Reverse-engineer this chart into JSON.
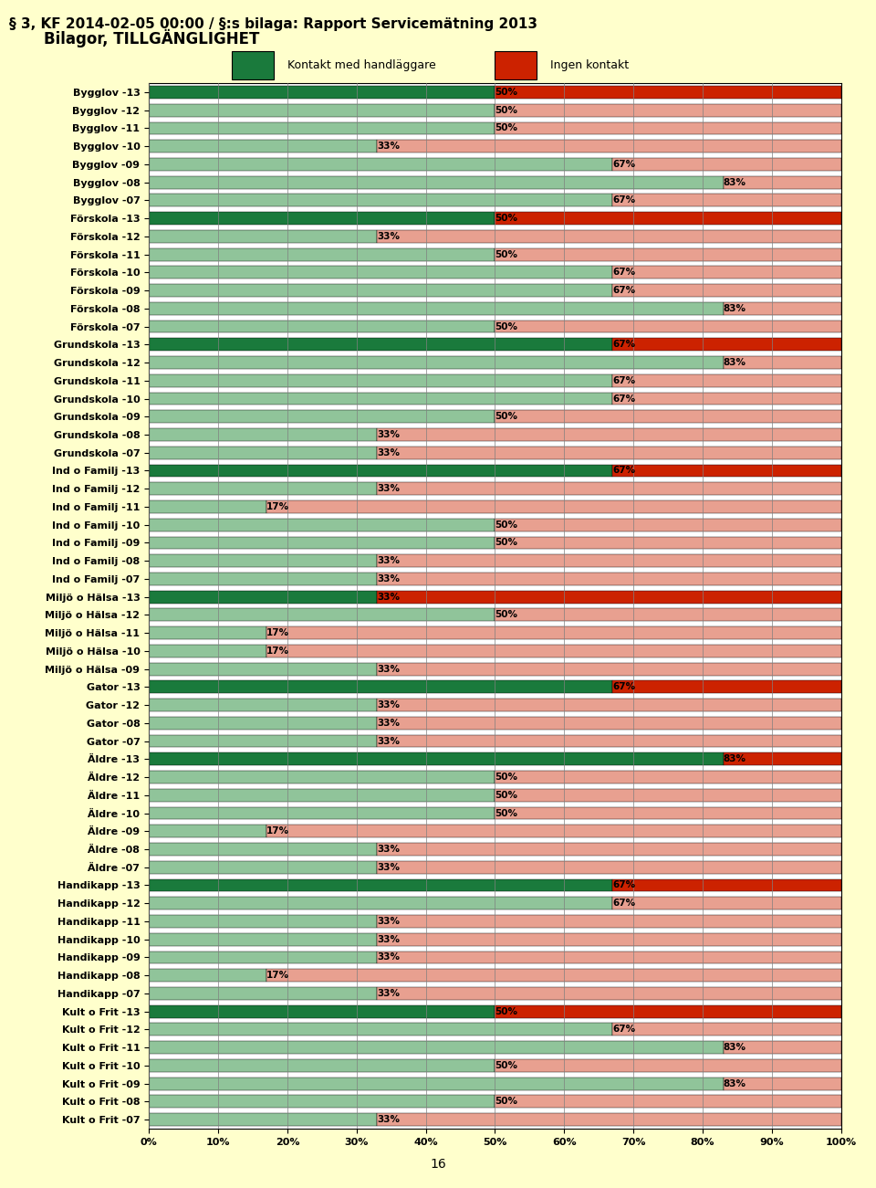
{
  "title": "Bilagor, TILLGÄNGLIGHET",
  "header": "§ 3, KF 2014-02-05 00:00 / §:s bilaga: Rapport Servicemätning 2013",
  "legend1": "Kontakt med handläggare",
  "legend2": "Ingen kontakt",
  "xlabel_ticks": [
    "0%",
    "10%",
    "20%",
    "30%",
    "40%",
    "50%",
    "60%",
    "70%",
    "80%",
    "90%",
    "100%"
  ],
  "categories": [
    "Bygglov -13",
    "Bygglov -12",
    "Bygglov -11",
    "Bygglov -10",
    "Bygglov -09",
    "Bygglov -08",
    "Bygglov -07",
    "Förskola -13",
    "Förskola -12",
    "Förskola -11",
    "Förskola -10",
    "Förskola -09",
    "Förskola -08",
    "Förskola -07",
    "Grundskola -13",
    "Grundskola -12",
    "Grundskola -11",
    "Grundskola -10",
    "Grundskola -09",
    "Grundskola -08",
    "Grundskola -07",
    "Ind o Familj -13",
    "Ind o Familj -12",
    "Ind o Familj -11",
    "Ind o Familj -10",
    "Ind o Familj -09",
    "Ind o Familj -08",
    "Ind o Familj -07",
    "Miljö o Hälsa -13",
    "Miljö o Hälsa -12",
    "Miljö o Hälsa -11",
    "Miljö o Hälsa -10",
    "Miljö o Hälsa -09",
    "Gator -13",
    "Gator -12",
    "Gator -08",
    "Gator -07",
    "Äldre -13",
    "Äldre -12",
    "Äldre -11",
    "Äldre -10",
    "Äldre -09",
    "Äldre -08",
    "Äldre -07",
    "Handikapp -13",
    "Handikapp -12",
    "Handikapp -11",
    "Handikapp -10",
    "Handikapp -09",
    "Handikapp -08",
    "Handikapp -07",
    "Kult o Frit -13",
    "Kult o Frit -12",
    "Kult o Frit -11",
    "Kult o Frit -10",
    "Kult o Frit -09",
    "Kult o Frit -08",
    "Kult o Frit -07"
  ],
  "green_vals": [
    50,
    50,
    50,
    33,
    67,
    83,
    67,
    50,
    33,
    50,
    67,
    67,
    83,
    50,
    67,
    83,
    67,
    67,
    50,
    33,
    33,
    67,
    33,
    17,
    50,
    50,
    33,
    33,
    33,
    50,
    17,
    17,
    33,
    67,
    33,
    33,
    33,
    83,
    50,
    50,
    50,
    17,
    33,
    33,
    67,
    67,
    33,
    33,
    33,
    17,
    33,
    50,
    67,
    83,
    50,
    83,
    50,
    33
  ],
  "red_vals": [
    50,
    50,
    50,
    67,
    33,
    17,
    33,
    50,
    67,
    50,
    33,
    33,
    17,
    50,
    33,
    17,
    33,
    33,
    50,
    67,
    67,
    33,
    67,
    83,
    50,
    50,
    67,
    67,
    67,
    50,
    83,
    83,
    67,
    33,
    67,
    67,
    67,
    17,
    50,
    50,
    50,
    83,
    67,
    67,
    33,
    33,
    67,
    67,
    67,
    83,
    67,
    50,
    33,
    17,
    50,
    17,
    50,
    67
  ],
  "is_13": [
    true,
    false,
    false,
    false,
    false,
    false,
    false,
    true,
    false,
    false,
    false,
    false,
    false,
    false,
    true,
    false,
    false,
    false,
    false,
    false,
    false,
    true,
    false,
    false,
    false,
    false,
    false,
    false,
    true,
    false,
    false,
    false,
    false,
    true,
    false,
    false,
    false,
    true,
    false,
    false,
    false,
    false,
    false,
    false,
    true,
    false,
    false,
    false,
    false,
    false,
    false,
    true,
    false,
    false,
    false,
    false,
    false,
    false
  ],
  "dark_green": "#1a7a3c",
  "light_green": "#90c49a",
  "dark_red": "#cc2200",
  "light_red": "#e8a090",
  "bg_color": "#ffffff",
  "bar_height": 0.7,
  "figsize": [
    9.6,
    13.01
  ]
}
